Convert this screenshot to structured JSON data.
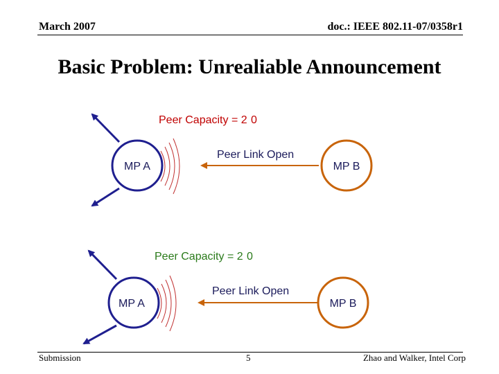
{
  "header": {
    "date": "March 2007",
    "doc_id": "doc.: IEEE 802.11-07/0358r1"
  },
  "title": "Basic Problem: Unrealiable Announcement",
  "colors": {
    "mp_a": "#1f1f8f",
    "mp_b": "#c8640a",
    "capacity_top": "#c00000",
    "capacity_bottom": "#2a7a1a",
    "waves": "#c03030",
    "text_dark": "#1a1a5a"
  },
  "scenarios": [
    {
      "peer_capacity": "Peer Capacity = 2",
      "peer_capacity_overlay": "0",
      "message": "Peer Link Open",
      "mp_a_label": "MP A",
      "mp_b_label": "MP B"
    },
    {
      "peer_capacity": "Peer Capacity = 2",
      "peer_capacity_overlay": "0",
      "message": "Peer Link Open",
      "mp_a_label": "MP A",
      "mp_b_label": "MP B"
    }
  ],
  "footer": {
    "left": "Submission",
    "page": "5",
    "right": "Zhao and Walker, Intel Corp"
  }
}
